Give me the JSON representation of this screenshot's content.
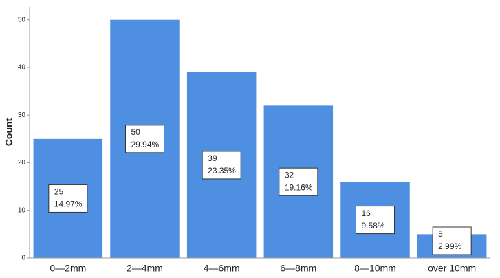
{
  "chart_data": {
    "type": "bar",
    "y_label": "Count",
    "categories": [
      "0—2mm",
      "2—4mm",
      "4—6mm",
      "6—8mm",
      "8—10mm",
      "over 10mm"
    ],
    "values": [
      25,
      50,
      39,
      32,
      16,
      5
    ],
    "percentage_labels": [
      "14.97%",
      "29.94%",
      "23.35%",
      "19.16%",
      "9.58%",
      "2.99%"
    ],
    "color": "#4f8fe2",
    "ylim": [
      0,
      52.7
    ],
    "yticks": [
      0,
      10,
      20,
      30,
      40,
      50
    ]
  }
}
